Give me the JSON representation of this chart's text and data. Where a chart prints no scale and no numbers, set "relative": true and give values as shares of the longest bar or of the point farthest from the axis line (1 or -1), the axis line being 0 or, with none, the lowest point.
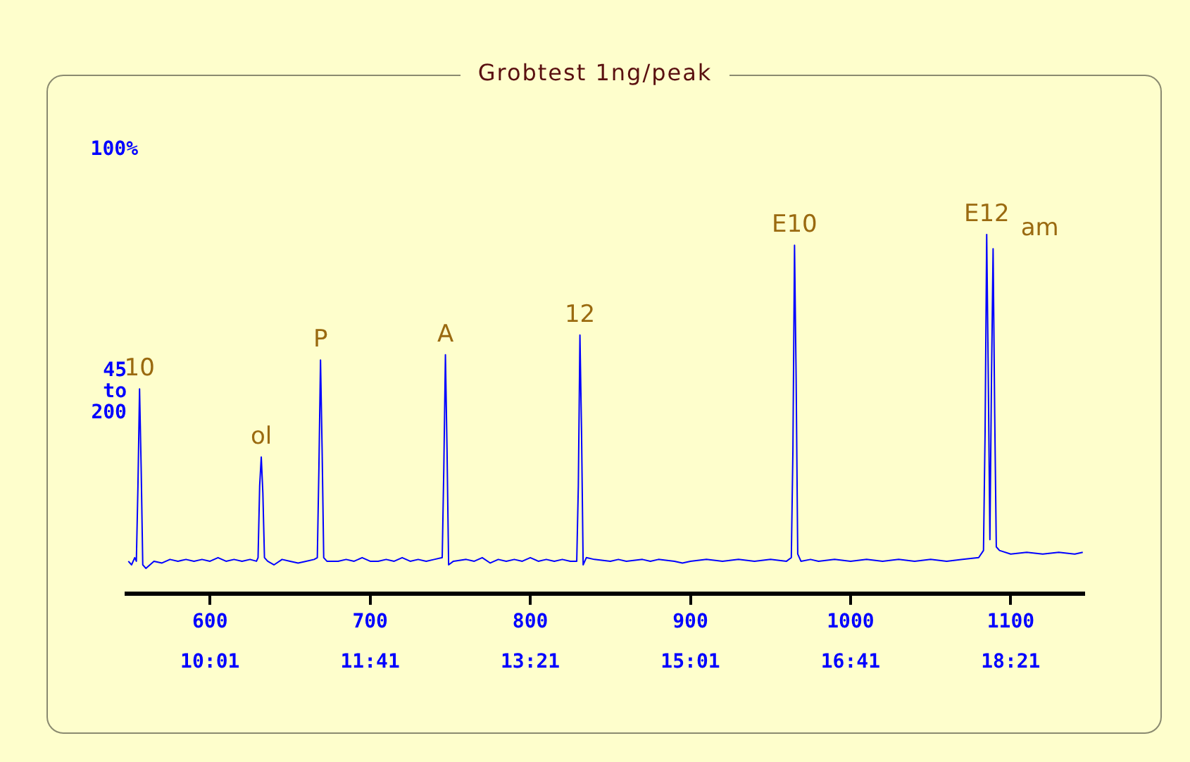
{
  "chart_data": {
    "type": "line",
    "title": "Grobtest 1ng/peak",
    "ylabel": "45 to 200",
    "relative": true,
    "marker": "none",
    "line_style": "solid",
    "grid": false,
    "legend": false,
    "xlim": [
      548,
      1146
    ],
    "xticks": [
      600,
      700,
      800,
      900,
      1000,
      1100
    ],
    "x2lim": [
      9.15,
      19.117
    ],
    "x2ticks": [
      {
        "value": 10.0167,
        "label": "10:01"
      },
      {
        "value": 11.6833,
        "label": "11:41"
      },
      {
        "value": 13.35,
        "label": "13:21"
      },
      {
        "value": 15.0167,
        "label": "15:01"
      },
      {
        "value": 16.6833,
        "label": "16:41"
      },
      {
        "value": 18.35,
        "label": "18:21"
      }
    ],
    "x": [
      549,
      551,
      553,
      554,
      555,
      556,
      557,
      558,
      560,
      565,
      570,
      575,
      580,
      585,
      590,
      595,
      600,
      605,
      610,
      615,
      620,
      625,
      629,
      630,
      631,
      632,
      633,
      634,
      636,
      640,
      645,
      650,
      655,
      660,
      665,
      667,
      668,
      669,
      670,
      671,
      673,
      680,
      685,
      690,
      695,
      700,
      705,
      710,
      715,
      720,
      725,
      730,
      735,
      740,
      745,
      746,
      747,
      748,
      749,
      752,
      760,
      765,
      770,
      775,
      780,
      785,
      790,
      795,
      800,
      805,
      810,
      815,
      820,
      825,
      829,
      830,
      831,
      832,
      833,
      835,
      840,
      850,
      855,
      860,
      870,
      875,
      880,
      890,
      895,
      900,
      910,
      920,
      930,
      940,
      950,
      960,
      963,
      964,
      965,
      966,
      967,
      969,
      975,
      980,
      990,
      1000,
      1010,
      1020,
      1030,
      1040,
      1050,
      1060,
      1070,
      1080,
      1083,
      1084,
      1085,
      1086,
      1087,
      1088,
      1089,
      1090,
      1091,
      1093,
      1100,
      1110,
      1120,
      1130,
      1140,
      1145
    ],
    "series": [
      {
        "color": "#0000ff",
        "values": [
          0.09,
          0.08,
          0.1,
          0.09,
          0.3,
          0.57,
          0.35,
          0.08,
          0.07,
          0.09,
          0.085,
          0.095,
          0.09,
          0.095,
          0.09,
          0.095,
          0.09,
          0.1,
          0.09,
          0.095,
          0.09,
          0.095,
          0.09,
          0.1,
          0.3,
          0.38,
          0.28,
          0.1,
          0.09,
          0.08,
          0.095,
          0.09,
          0.085,
          0.09,
          0.095,
          0.1,
          0.35,
          0.65,
          0.4,
          0.1,
          0.09,
          0.09,
          0.095,
          0.09,
          0.1,
          0.09,
          0.09,
          0.095,
          0.09,
          0.1,
          0.09,
          0.095,
          0.09,
          0.095,
          0.1,
          0.35,
          0.665,
          0.4,
          0.08,
          0.09,
          0.095,
          0.09,
          0.1,
          0.085,
          0.095,
          0.09,
          0.095,
          0.09,
          0.1,
          0.09,
          0.095,
          0.09,
          0.095,
          0.09,
          0.09,
          0.3,
          0.72,
          0.45,
          0.08,
          0.1,
          0.095,
          0.09,
          0.095,
          0.09,
          0.095,
          0.09,
          0.095,
          0.09,
          0.085,
          0.09,
          0.095,
          0.09,
          0.095,
          0.09,
          0.095,
          0.09,
          0.1,
          0.4,
          0.97,
          0.6,
          0.11,
          0.09,
          0.095,
          0.09,
          0.095,
          0.09,
          0.095,
          0.09,
          0.095,
          0.09,
          0.095,
          0.09,
          0.095,
          0.1,
          0.12,
          0.45,
          1.0,
          0.6,
          0.15,
          0.6,
          0.96,
          0.5,
          0.13,
          0.12,
          0.11,
          0.115,
          0.11,
          0.115,
          0.11,
          0.115
        ]
      }
    ],
    "annotations": [
      "100%",
      {
        "text": "10",
        "x": 556,
        "y": 0.57
      },
      {
        "text": "ol",
        "x": 632,
        "y": 0.38
      },
      {
        "text": "P",
        "x": 669,
        "y": 0.65
      },
      {
        "text": "A",
        "x": 747,
        "y": 0.665
      },
      {
        "text": "12",
        "x": 831,
        "y": 0.72
      },
      {
        "text": "E10",
        "x": 965,
        "y": 0.97
      },
      {
        "text": "E12",
        "x": 1085,
        "y": 1.0
      },
      {
        "text": "am",
        "x": 1089,
        "y": 0.96
      }
    ]
  }
}
